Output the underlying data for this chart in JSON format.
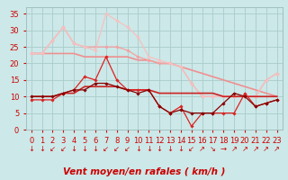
{
  "x": [
    0,
    1,
    2,
    3,
    4,
    5,
    6,
    7,
    8,
    9,
    10,
    11,
    12,
    13,
    14,
    15,
    16,
    17,
    18,
    19,
    20,
    21,
    22,
    23
  ],
  "bg_color": "#cce8e8",
  "grid_color": "#aacccc",
  "xlabel": "Vent moyen/en rafales ( km/h )",
  "xlabel_color": "#cc0000",
  "ylim": [
    0,
    37
  ],
  "yticks": [
    0,
    5,
    10,
    15,
    20,
    25,
    30,
    35
  ],
  "series": [
    {
      "values": [
        23,
        23,
        23,
        23,
        23,
        22,
        22,
        22,
        22,
        22,
        21,
        21,
        20,
        20,
        19,
        18,
        17,
        16,
        15,
        14,
        13,
        12,
        11,
        10
      ],
      "color": "#f09090",
      "lw": 1.2,
      "marker": null
    },
    {
      "values": [
        23,
        23,
        27,
        31,
        26,
        25,
        25,
        25,
        25,
        24,
        22,
        21,
        20,
        20,
        19,
        14,
        10,
        10,
        10,
        10,
        10,
        10,
        15,
        17
      ],
      "color": "#f4a0a0",
      "lw": 0.9,
      "marker": "D",
      "ms": 1.8
    },
    {
      "values": [
        23,
        23,
        27,
        31,
        26,
        25,
        24,
        35,
        33,
        31,
        28,
        22,
        21,
        20,
        19,
        14,
        10,
        10,
        10,
        10,
        10,
        10,
        15,
        17
      ],
      "color": "#f8c0c0",
      "lw": 0.9,
      "marker": "D",
      "ms": 1.8
    },
    {
      "values": [
        10,
        10,
        10,
        11,
        11,
        13,
        13,
        13,
        13,
        12,
        12,
        12,
        11,
        11,
        11,
        11,
        11,
        11,
        10,
        10,
        10,
        10,
        10,
        10
      ],
      "color": "#cc2222",
      "lw": 1.2,
      "marker": null
    },
    {
      "values": [
        9,
        9,
        9,
        11,
        12,
        16,
        15,
        22,
        15,
        12,
        12,
        12,
        7,
        5,
        7,
        1,
        5,
        5,
        5,
        5,
        11,
        7,
        8,
        9
      ],
      "color": "#dd2222",
      "lw": 0.9,
      "marker": "D",
      "ms": 1.8
    },
    {
      "values": [
        10,
        10,
        10,
        11,
        12,
        12,
        14,
        14,
        13,
        12,
        11,
        12,
        7,
        5,
        6,
        5,
        5,
        5,
        8,
        11,
        10,
        7,
        8,
        9
      ],
      "color": "#880000",
      "lw": 0.9,
      "marker": "D",
      "ms": 1.8
    }
  ],
  "wind_arrows": [
    "↓",
    "↓",
    "↙",
    "↙",
    "↓",
    "↓",
    "↓",
    "↙",
    "↙",
    "↙",
    "↓",
    "↓",
    "↓",
    "↓",
    "↓",
    "↙",
    "↗",
    "↘",
    "→",
    "↗",
    "↗",
    "↗",
    "↗",
    "↗"
  ],
  "tick_color": "#cc0000",
  "tick_fontsize": 6,
  "arrow_fontsize": 6,
  "xlabel_fontsize": 7.5
}
